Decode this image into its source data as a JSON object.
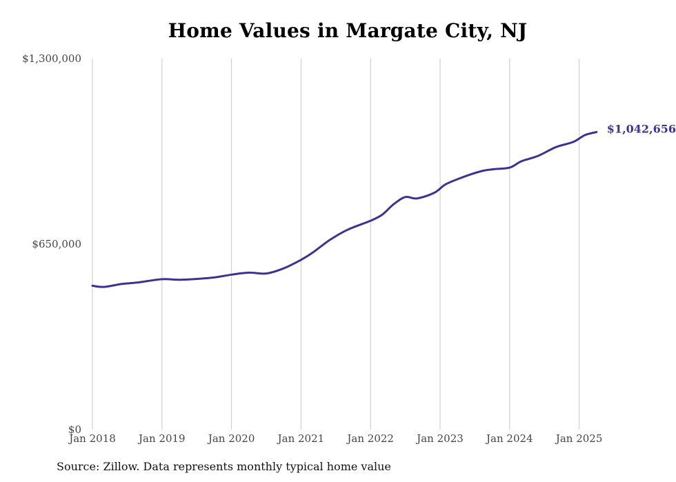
{
  "chart_data": {
    "type": "line",
    "title": "Home Values in Margate City, NJ",
    "xlabel": "",
    "ylabel": "",
    "ylim": [
      0,
      1300000
    ],
    "yticks": [
      "$0",
      "$650,000",
      "$1,300,000"
    ],
    "ytick_values": [
      0,
      650000,
      1300000
    ],
    "xticks": [
      "Jan 2018",
      "Jan 2019",
      "Jan 2020",
      "Jan 2021",
      "Jan 2022",
      "Jan 2023",
      "Jan 2024",
      "Jan 2025"
    ],
    "grid": "vertical lines at January of each year",
    "end_label": "$1,042,656",
    "line_color": "#3d3291",
    "series": [
      {
        "x": [
          "2018-01",
          "2018-03",
          "2018-06",
          "2018-09",
          "2019-01",
          "2019-04",
          "2019-07",
          "2019-10",
          "2020-01",
          "2020-04",
          "2020-07",
          "2020-10",
          "2021-01",
          "2021-03",
          "2021-06",
          "2021-09",
          "2022-01",
          "2022-03",
          "2022-05",
          "2022-07",
          "2022-09",
          "2022-12",
          "2023-02",
          "2023-05",
          "2023-08",
          "2023-10",
          "2024-01",
          "2024-03",
          "2024-06",
          "2024-09",
          "2024-12",
          "2025-02",
          "2025-04"
        ],
        "values": [
          504000,
          500000,
          510000,
          516000,
          527000,
          525000,
          528000,
          533000,
          543000,
          550000,
          547000,
          565000,
          595000,
          620000,
          665000,
          700000,
          732000,
          753000,
          790000,
          815000,
          810000,
          830000,
          860000,
          885000,
          905000,
          912000,
          918000,
          940000,
          960000,
          990000,
          1008000,
          1032000,
          1042656
        ]
      }
    ]
  },
  "source": "Source: Zillow. Data represents monthly typical home value"
}
